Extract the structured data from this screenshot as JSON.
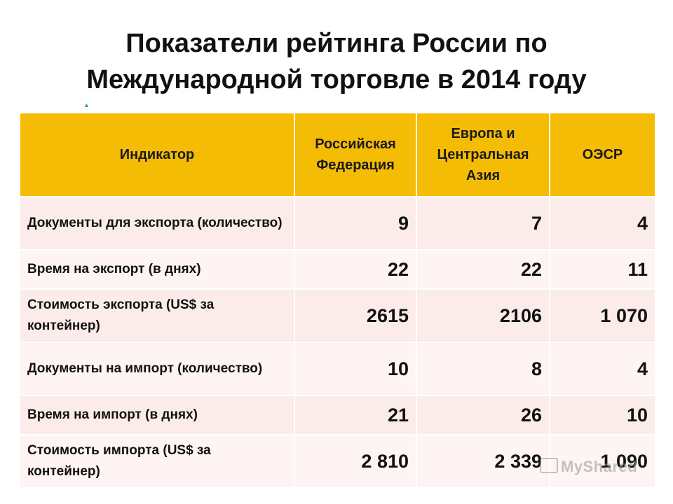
{
  "title_line1": "Показатели рейтинга России по",
  "title_line2": "Международной торговле в 2014 году",
  "table": {
    "headers": [
      "Индикатор",
      "Российская Федерация",
      "Европа и Центральная Азия",
      "ОЭСР"
    ],
    "rows": [
      {
        "label": "Документы для экспорта (количество)",
        "ru": "9",
        "eca": "7",
        "oecd": "4"
      },
      {
        "label": "Время на экспорт (в днях)",
        "ru": "22",
        "eca": "22",
        "oecd": "11"
      },
      {
        "label": "Стоимость экспорта (US$ за контейнер)",
        "ru": "2615",
        "eca": "2106",
        "oecd": "1 070"
      },
      {
        "label": "Документы на импорт (количество)",
        "ru": "10",
        "eca": "8",
        "oecd": "4"
      },
      {
        "label": "Время на импорт (в днях)",
        "ru": "21",
        "eca": "26",
        "oecd": "10"
      },
      {
        "label": "Стоимость импорта (US$ за контейнер)",
        "ru": "2 810",
        "eca": "2 339",
        "oecd": "1 090"
      }
    ]
  },
  "watermark": "MyShared"
}
